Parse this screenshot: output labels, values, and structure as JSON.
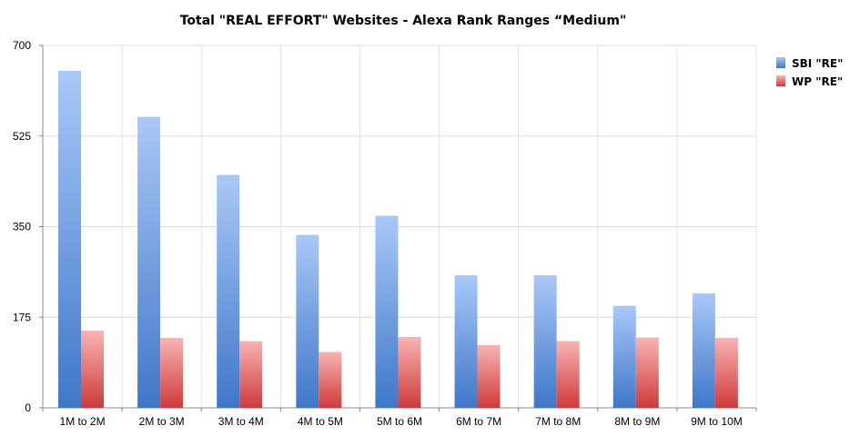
{
  "chart_data": {
    "type": "bar",
    "title": "Total \"REAL EFFORT\" Websites - Alexa Rank Ranges   “Medium\"",
    "xlabel": "",
    "ylabel": "",
    "categories": [
      "1M to 2M",
      "2M to 3M",
      "3M to 4M",
      "4M to 5M",
      "5M to 6M",
      "6M to 7M",
      "7M to 8M",
      "8M to 9M",
      "9M to 10M"
    ],
    "series": [
      {
        "name": "SBI \"RE\"",
        "values": [
          651,
          562,
          450,
          334,
          371,
          256,
          256,
          197,
          221
        ],
        "color": "#4a80cf"
      },
      {
        "name": "WP \"RE\"",
        "values": [
          149,
          135,
          129,
          108,
          137,
          121,
          129,
          136,
          135
        ],
        "color": "#d94545"
      }
    ],
    "ylim": [
      0,
      700
    ],
    "yticks": [
      0,
      175,
      350,
      525,
      700
    ],
    "grid": true,
    "legend": "top-right"
  }
}
